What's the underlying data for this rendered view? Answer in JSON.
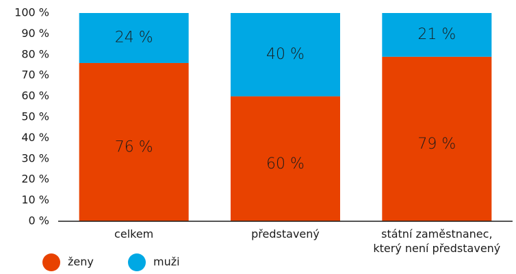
{
  "chart_data": {
    "type": "bar",
    "stacked": true,
    "categories": [
      "celkem",
      "představený",
      "státní zaměstnanec, který není představený"
    ],
    "series": [
      {
        "name": "ženy",
        "color": "#e84200",
        "values": [
          76,
          60,
          79
        ],
        "value_labels": [
          "76 %",
          "60 %",
          "79 %"
        ]
      },
      {
        "name": "muži",
        "color": "#00a8e4",
        "values": [
          24,
          40,
          21
        ],
        "value_labels": [
          "24 %",
          "40 %",
          "21 %"
        ]
      }
    ],
    "ylim": [
      0,
      100
    ],
    "yticks": [
      {
        "value": 0,
        "label": "0 %"
      },
      {
        "value": 10,
        "label": "10 %"
      },
      {
        "value": 20,
        "label": "20 %"
      },
      {
        "value": 30,
        "label": "30 %"
      },
      {
        "value": 40,
        "label": "40 %"
      },
      {
        "value": 50,
        "label": "50 %"
      },
      {
        "value": 60,
        "label": "60 %"
      },
      {
        "value": 70,
        "label": "70 %"
      },
      {
        "value": 80,
        "label": "80 %"
      },
      {
        "value": 90,
        "label": "90 %"
      },
      {
        "value": 100,
        "label": "100 %"
      }
    ],
    "grid": false,
    "legend": "bottom-left"
  }
}
